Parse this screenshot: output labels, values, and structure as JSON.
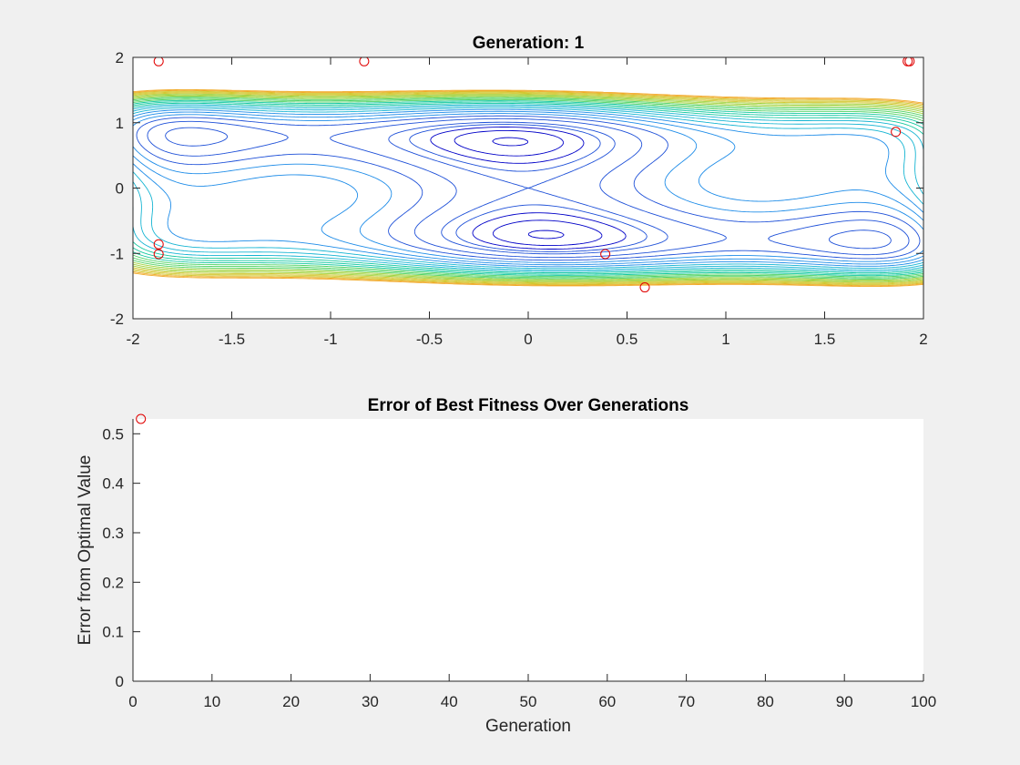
{
  "chart_data": [
    {
      "type": "contour",
      "title": "Generation: 1",
      "xlim": [
        -2,
        2
      ],
      "ylim": [
        -2,
        2
      ],
      "xticks": [
        -2,
        -1.5,
        -1,
        -0.5,
        0,
        0.5,
        1,
        1.5,
        2
      ],
      "yticks": [
        -2,
        -1,
        0,
        1,
        2
      ],
      "xlabel": "",
      "ylabel": "",
      "grid": false,
      "contour_function": "(4 - 2.1*x^2 + x^4/3)*x^2 + x*y + (-4 + 4*y^2)*y^2",
      "contour_levels": [
        -1,
        -0.75,
        -0.5,
        -0.25,
        0,
        0.5,
        1,
        1.5,
        2,
        2.5,
        3,
        3.5,
        4,
        4.5,
        5,
        5.5,
        6,
        6.5,
        7,
        7.5,
        8,
        8.5,
        9,
        9.5,
        10,
        10.5,
        11
      ],
      "colormap": [
        "#0000c8",
        "#1e50d8",
        "#1e8ce8",
        "#14b4d2",
        "#14c8a0",
        "#50d264",
        "#a0d23c",
        "#d2c832",
        "#f0aa28"
      ],
      "scatter": {
        "marker": "circle",
        "color": "#e00000",
        "points": [
          {
            "x": -1.87,
            "y": 1.94
          },
          {
            "x": -0.83,
            "y": 1.94
          },
          {
            "x": 1.92,
            "y": 1.94
          },
          {
            "x": 1.93,
            "y": 1.94
          },
          {
            "x": 1.86,
            "y": 0.86
          },
          {
            "x": -1.87,
            "y": -0.86
          },
          {
            "x": -1.87,
            "y": -1.01
          },
          {
            "x": 0.39,
            "y": -1.01
          },
          {
            "x": 0.59,
            "y": -1.52
          }
        ]
      }
    },
    {
      "type": "scatter",
      "title": "Error of Best Fitness Over Generations",
      "xlabel": "Generation",
      "ylabel": "Error from Optimal Value",
      "xlim": [
        0,
        100
      ],
      "ylim": [
        0,
        0.53
      ],
      "xticks": [
        0,
        10,
        20,
        30,
        40,
        50,
        60,
        70,
        80,
        90,
        100
      ],
      "yticks": [
        0,
        0.1,
        0.2,
        0.3,
        0.4,
        0.5
      ],
      "grid": false,
      "series": [
        {
          "marker": "circle",
          "color": "#e00000",
          "x": [
            1
          ],
          "y": [
            0.53
          ]
        }
      ]
    }
  ]
}
